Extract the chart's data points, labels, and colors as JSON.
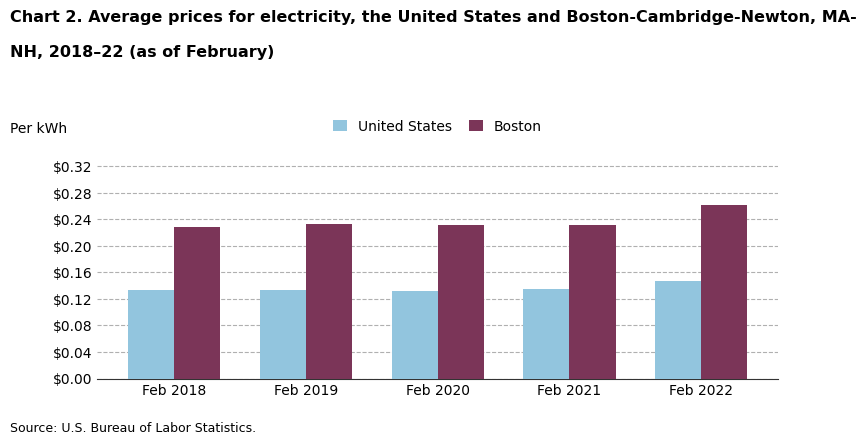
{
  "title_line1": "Chart 2. Average prices for electricity, the United States and Boston-Cambridge-Newton, MA-",
  "title_line2": "NH, 2018–22 (as of February)",
  "per_kwh": "Per kWh",
  "source": "Source: U.S. Bureau of Labor Statistics.",
  "categories": [
    "Feb 2018",
    "Feb 2019",
    "Feb 2020",
    "Feb 2021",
    "Feb 2022"
  ],
  "us_values": [
    0.134,
    0.134,
    0.132,
    0.135,
    0.147
  ],
  "boston_values": [
    0.228,
    0.233,
    0.232,
    0.232,
    0.261
  ],
  "us_color": "#92C5DE",
  "boston_color": "#7B3558",
  "us_label": "United States",
  "boston_label": "Boston",
  "ylim": [
    0,
    0.34
  ],
  "yticks": [
    0.0,
    0.04,
    0.08,
    0.12,
    0.16,
    0.2,
    0.24,
    0.28,
    0.32
  ],
  "bar_width": 0.35,
  "title_fontsize": 11.5,
  "tick_fontsize": 10,
  "legend_fontsize": 10,
  "source_fontsize": 9,
  "per_kwh_fontsize": 10,
  "background_color": "#ffffff",
  "grid_color": "#b0b0b0"
}
